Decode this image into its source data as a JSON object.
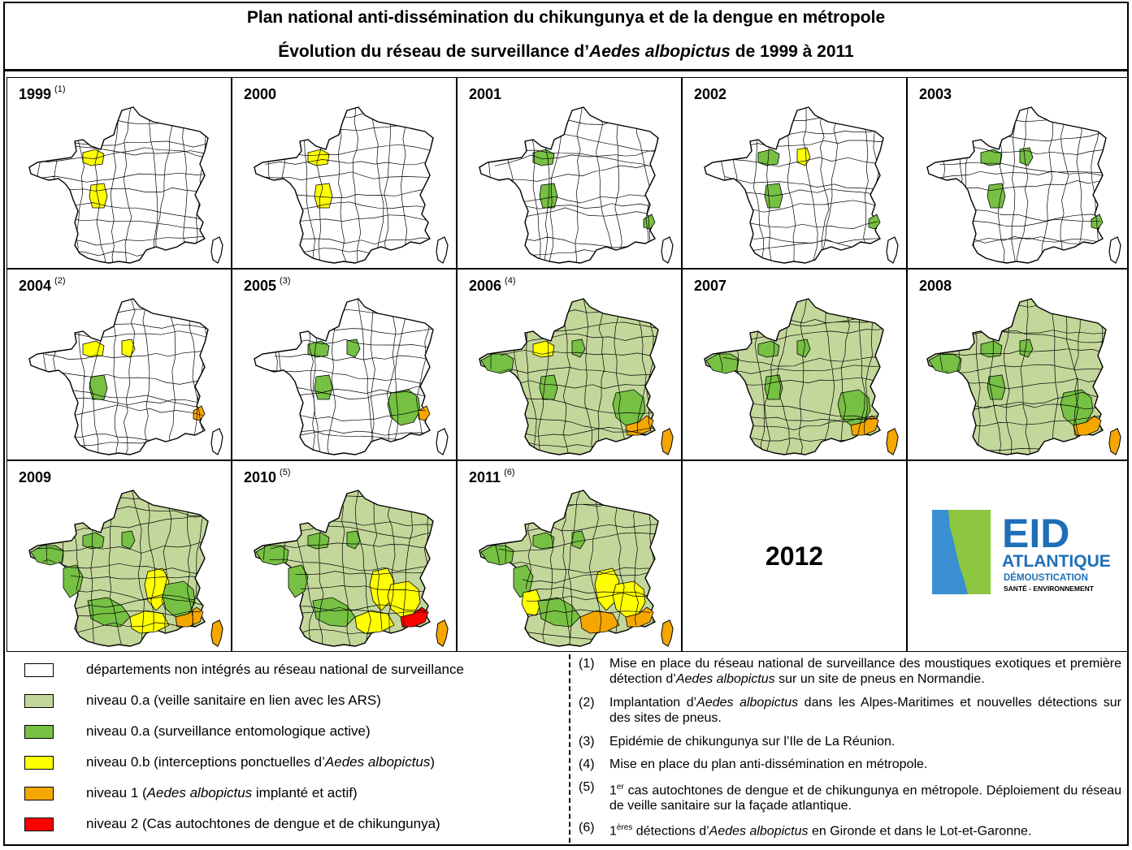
{
  "title": {
    "line1": "Plan national anti-dissémination du chikungunya et de la dengue en métropole",
    "line2_prefix": "Évolution du réseau de surveillance d’",
    "line2_species": "Aedes albopictus",
    "line2_suffix": " de 1999 à 2011"
  },
  "colors": {
    "none": "#ffffff",
    "veille": "#c4d79b",
    "active": "#76c043",
    "interceptions": "#ffff00",
    "implante": "#f5a700",
    "autochtones": "#ff0000",
    "border": "#000000",
    "logo_blue": "#1e6fb8",
    "logo_green": "#8dc63f",
    "logo_sea": "#3a8fd1"
  },
  "years": [
    {
      "year": "1999",
      "note": "(1)",
      "base": "none",
      "regions": [
        {
          "name": "normandie",
          "level": "interceptions"
        },
        {
          "name": "centre",
          "level": "interceptions"
        }
      ]
    },
    {
      "year": "2000",
      "note": "",
      "base": "none",
      "regions": [
        {
          "name": "normandie",
          "level": "interceptions"
        },
        {
          "name": "centre",
          "level": "interceptions"
        }
      ]
    },
    {
      "year": "2001",
      "note": "",
      "base": "none",
      "regions": [
        {
          "name": "normandie",
          "level": "active"
        },
        {
          "name": "centre",
          "level": "active"
        },
        {
          "name": "alpes-maritimes",
          "level": "active"
        }
      ]
    },
    {
      "year": "2002",
      "note": "",
      "base": "none",
      "regions": [
        {
          "name": "normandie",
          "level": "active"
        },
        {
          "name": "paris",
          "level": "interceptions"
        },
        {
          "name": "centre",
          "level": "active"
        },
        {
          "name": "alpes-maritimes",
          "level": "active"
        }
      ]
    },
    {
      "year": "2003",
      "note": "",
      "base": "none",
      "regions": [
        {
          "name": "normandie",
          "level": "active"
        },
        {
          "name": "paris",
          "level": "active"
        },
        {
          "name": "centre",
          "level": "active"
        },
        {
          "name": "alpes-maritimes",
          "level": "active"
        }
      ]
    },
    {
      "year": "2004",
      "note": "(2)",
      "base": "none",
      "regions": [
        {
          "name": "normandie",
          "level": "interceptions"
        },
        {
          "name": "paris",
          "level": "interceptions"
        },
        {
          "name": "centre",
          "level": "active"
        },
        {
          "name": "alpes-maritimes",
          "level": "implante"
        }
      ]
    },
    {
      "year": "2005",
      "note": "(3)",
      "base": "none",
      "regions": [
        {
          "name": "normandie",
          "level": "active"
        },
        {
          "name": "paris",
          "level": "active"
        },
        {
          "name": "centre",
          "level": "active"
        },
        {
          "name": "south-east",
          "level": "active"
        },
        {
          "name": "alpes-maritimes",
          "level": "implante"
        }
      ]
    },
    {
      "year": "2006",
      "note": "(4)",
      "base": "veille",
      "regions": [
        {
          "name": "normandie",
          "level": "interceptions"
        },
        {
          "name": "paris",
          "level": "active"
        },
        {
          "name": "bretagne",
          "level": "active"
        },
        {
          "name": "centre",
          "level": "active"
        },
        {
          "name": "south-east",
          "level": "active"
        },
        {
          "name": "var-am",
          "level": "implante"
        },
        {
          "name": "corse",
          "level": "implante"
        }
      ]
    },
    {
      "year": "2007",
      "note": "",
      "base": "veille",
      "regions": [
        {
          "name": "normandie",
          "level": "active"
        },
        {
          "name": "paris",
          "level": "active"
        },
        {
          "name": "bretagne",
          "level": "active"
        },
        {
          "name": "centre",
          "level": "active"
        },
        {
          "name": "south-east",
          "level": "active"
        },
        {
          "name": "var-am",
          "level": "implante"
        },
        {
          "name": "corse",
          "level": "implante"
        }
      ]
    },
    {
      "year": "2008",
      "note": "",
      "base": "veille",
      "regions": [
        {
          "name": "normandie",
          "level": "active"
        },
        {
          "name": "paris",
          "level": "active"
        },
        {
          "name": "bretagne",
          "level": "active"
        },
        {
          "name": "centre",
          "level": "active"
        },
        {
          "name": "south-east",
          "level": "active"
        },
        {
          "name": "var-am",
          "level": "implante"
        },
        {
          "name": "corse",
          "level": "implante"
        }
      ]
    },
    {
      "year": "2009",
      "note": "",
      "base": "veille",
      "regions": [
        {
          "name": "normandie",
          "level": "active"
        },
        {
          "name": "paris",
          "level": "active"
        },
        {
          "name": "bretagne",
          "level": "active"
        },
        {
          "name": "west",
          "level": "active"
        },
        {
          "name": "southwest",
          "level": "active"
        },
        {
          "name": "rhone",
          "level": "interceptions"
        },
        {
          "name": "south-east",
          "level": "active"
        },
        {
          "name": "languedoc",
          "level": "interceptions"
        },
        {
          "name": "var-am",
          "level": "implante"
        },
        {
          "name": "corse",
          "level": "implante"
        }
      ]
    },
    {
      "year": "2010",
      "note": "(5)",
      "base": "veille",
      "regions": [
        {
          "name": "normandie",
          "level": "active"
        },
        {
          "name": "paris",
          "level": "active"
        },
        {
          "name": "bretagne",
          "level": "active"
        },
        {
          "name": "west",
          "level": "active"
        },
        {
          "name": "southwest",
          "level": "active"
        },
        {
          "name": "rhone",
          "level": "interceptions"
        },
        {
          "name": "south-east",
          "level": "interceptions"
        },
        {
          "name": "languedoc",
          "level": "interceptions"
        },
        {
          "name": "var-am",
          "level": "autochtones"
        },
        {
          "name": "corse",
          "level": "implante"
        }
      ]
    },
    {
      "year": "2011",
      "note": "(6)",
      "base": "veille",
      "regions": [
        {
          "name": "normandie",
          "level": "active"
        },
        {
          "name": "paris",
          "level": "active"
        },
        {
          "name": "bretagne",
          "level": "active"
        },
        {
          "name": "west",
          "level": "active"
        },
        {
          "name": "gironde",
          "level": "interceptions"
        },
        {
          "name": "southwest",
          "level": "active"
        },
        {
          "name": "rhone",
          "level": "interceptions"
        },
        {
          "name": "south-east",
          "level": "interceptions"
        },
        {
          "name": "languedoc",
          "level": "implante"
        },
        {
          "name": "var-am",
          "level": "implante"
        },
        {
          "name": "corse",
          "level": "implante"
        }
      ]
    }
  ],
  "year2012": "2012",
  "logo": {
    "line1": "EID",
    "line2": "ATLANTIQUE",
    "line3": "DÉMOUSTICATION",
    "line4": "SANTÉ - ENVIRONNEMENT"
  },
  "legend": [
    {
      "level": "none",
      "text": "départements non intégrés au réseau national de surveillance"
    },
    {
      "level": "veille",
      "text": "niveau 0.a (veille sanitaire en lien avec les ARS)"
    },
    {
      "level": "active",
      "text": "niveau 0.a (surveillance entomologique active)"
    },
    {
      "level": "interceptions",
      "text_before": "niveau 0.b (interceptions ponctuelles d’",
      "text_em": "Aedes albopictus",
      "text_after": ")"
    },
    {
      "level": "implante",
      "text_before": "niveau 1 (",
      "text_em": "Aedes albopictus",
      "text_after": " implanté et actif)"
    },
    {
      "level": "autochtones",
      "text": "niveau 2 (Cas autochtones de dengue et de chikungunya)"
    }
  ],
  "notes": [
    {
      "num": "(1)",
      "before": "Mise en place du réseau national de surveillance des moustiques exotiques et première détection d’",
      "em": "Aedes albopictus",
      "after": " sur un site de pneus en Normandie."
    },
    {
      "num": "(2)",
      "before": "Implantation d’",
      "em": "Aedes albopictus",
      "after": " dans les Alpes-Maritimes et nouvelles détections sur des sites de pneus."
    },
    {
      "num": "(3)",
      "before": "Epidémie de chikungunya sur l’Ile de La Réunion.",
      "em": "",
      "after": ""
    },
    {
      "num": "(4)",
      "before": "Mise en place du plan anti-dissémination en métropole.",
      "em": "",
      "after": ""
    },
    {
      "num": "(5)",
      "sup": "er",
      "before": "1",
      "after_sup": " cas autochtones de dengue et de chikungunya en métropole. Déploiement du réseau de veille sanitaire sur la façade atlantique.",
      "em": "",
      "after": ""
    },
    {
      "num": "(6)",
      "sup": "ères",
      "before": "1",
      "after_sup": " détections d’",
      "em": "Aedes albopictus",
      "after": " en Gironde et dans le Lot-et-Garonne."
    }
  ]
}
